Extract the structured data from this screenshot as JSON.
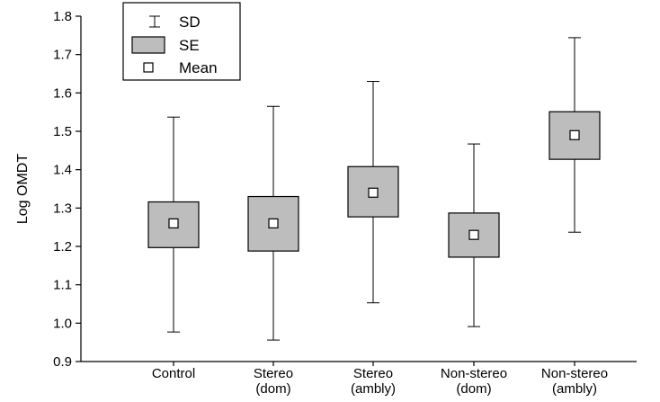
{
  "chart_data": {
    "type": "box",
    "ylabel": "Log OMDT",
    "ylim": [
      0.9,
      1.8
    ],
    "yticks": [
      "0.9",
      "1.0",
      "1.1",
      "1.2",
      "1.3",
      "1.4",
      "1.5",
      "1.6",
      "1.7",
      "1.8"
    ],
    "legend": {
      "placement": "top-left",
      "items": [
        {
          "symbol": "sd",
          "label": "SD"
        },
        {
          "symbol": "se",
          "label": "SE"
        },
        {
          "symbol": "mean",
          "label": "Mean"
        }
      ]
    },
    "groups": [
      {
        "label": [
          "Control"
        ],
        "mean": 1.26,
        "se_low": 1.197,
        "se_high": 1.316,
        "sd_low": 0.977,
        "sd_high": 1.537
      },
      {
        "label": [
          "Stereo",
          "(dom)"
        ],
        "mean": 1.26,
        "se_low": 1.188,
        "se_high": 1.33,
        "sd_low": 0.956,
        "sd_high": 1.565
      },
      {
        "label": [
          "Stereo",
          "(ambly)"
        ],
        "mean": 1.34,
        "se_low": 1.277,
        "se_high": 1.408,
        "sd_low": 1.053,
        "sd_high": 1.63
      },
      {
        "label": [
          "Non-stereo",
          "(dom)"
        ],
        "mean": 1.23,
        "se_low": 1.172,
        "se_high": 1.287,
        "sd_low": 0.991,
        "sd_high": 1.467
      },
      {
        "label": [
          "Non-stereo",
          "(ambly)"
        ],
        "mean": 1.49,
        "se_low": 1.427,
        "se_high": 1.551,
        "sd_low": 1.237,
        "sd_high": 1.744
      }
    ],
    "colors": {
      "box_fill": "#bdbdbd",
      "stroke": "#000000",
      "mean_fill": "#ffffff"
    }
  }
}
